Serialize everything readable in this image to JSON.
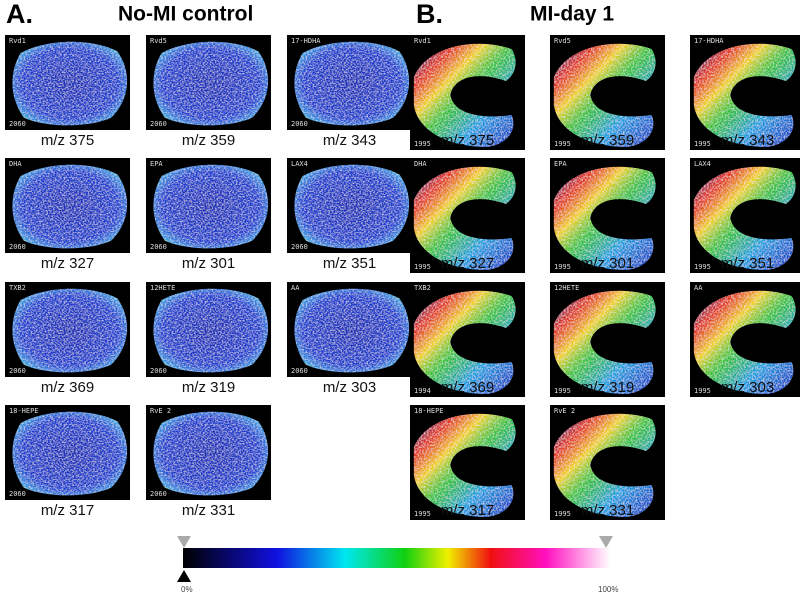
{
  "panels": [
    {
      "letter": "A.",
      "title": "No-MI control",
      "images": [
        {
          "label": "Rvd1",
          "scan": "2060",
          "caption": "m/z 375"
        },
        {
          "label": "Rvd5",
          "scan": "2060",
          "caption": "m/z 359"
        },
        {
          "label": "17-HDHA",
          "scan": "2060",
          "caption": "m/z 343"
        },
        {
          "label": "DHA",
          "scan": "2060",
          "caption": "m/z 327"
        },
        {
          "label": "EPA",
          "scan": "2060",
          "caption": "m/z 301"
        },
        {
          "label": "LAX4",
          "scan": "2060",
          "caption": "m/z 351"
        },
        {
          "label": "TXB2",
          "scan": "2060",
          "caption": "m/z 369"
        },
        {
          "label": "12HETE",
          "scan": "2060",
          "caption": "m/z 319"
        },
        {
          "label": "AA",
          "scan": "2060",
          "caption": "m/z 303"
        },
        {
          "label": "18-HEPE",
          "scan": "2060",
          "caption": "m/z 317"
        },
        {
          "label": "RvE 2",
          "scan": "2060",
          "caption": "m/z 331"
        }
      ]
    },
    {
      "letter": "B.",
      "title": "MI-day 1",
      "images": [
        {
          "label": "Rvd1",
          "scan": "1995",
          "caption": "m/z 375"
        },
        {
          "label": "Rvd5",
          "scan": "1995",
          "caption": "m/z 359"
        },
        {
          "label": "17-HDHA",
          "scan": "1995",
          "caption": "m/z 343"
        },
        {
          "label": "DHA",
          "scan": "1995",
          "caption": "m/z 327"
        },
        {
          "label": "EPA",
          "scan": "1995",
          "caption": "m/z 301"
        },
        {
          "label": "LAX4",
          "scan": "1995",
          "caption": "m/z 351"
        },
        {
          "label": "TXB2",
          "scan": "1994",
          "caption": "m/z 369"
        },
        {
          "label": "12HETE",
          "scan": "1995",
          "caption": "m/z 319"
        },
        {
          "label": "AA",
          "scan": "1995",
          "caption": "m/z 303"
        },
        {
          "label": "18-HEPE",
          "scan": "1995",
          "caption": "m/z 317"
        },
        {
          "label": "RvE 2",
          "scan": "1995",
          "caption": "m/z 331"
        }
      ]
    }
  ],
  "colorbar": {
    "min_label": "0%",
    "max_label": "100%"
  }
}
